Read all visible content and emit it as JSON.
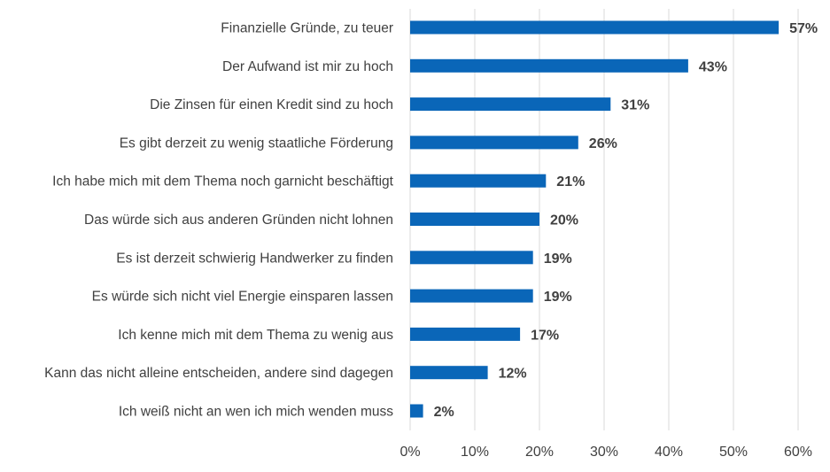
{
  "chart_data": {
    "type": "bar",
    "orientation": "horizontal",
    "categories": [
      "Finanzielle Gründe, zu teuer",
      "Der Aufwand ist mir zu hoch",
      "Die Zinsen für einen Kredit sind zu hoch",
      "Es gibt derzeit zu wenig staatliche Förderung",
      "Ich habe mich mit dem  Thema noch garnicht beschäftigt",
      "Das würde sich aus anderen Gründen nicht lohnen",
      "Es ist derzeit schwierig Handwerker zu finden",
      "Es würde sich nicht viel Energie einsparen lassen",
      "Ich kenne mich mit dem Thema zu wenig aus",
      "Kann das nicht alleine entscheiden, andere sind dagegen",
      "Ich weiß nicht an wen ich mich wenden muss"
    ],
    "values": [
      57,
      43,
      31,
      26,
      21,
      20,
      19,
      19,
      17,
      12,
      2
    ],
    "value_labels": [
      "57%",
      "43%",
      "31%",
      "26%",
      "21%",
      "20%",
      "19%",
      "19%",
      "17%",
      "12%",
      "2%"
    ],
    "x_ticks": [
      0,
      10,
      20,
      30,
      40,
      50,
      60
    ],
    "x_tick_labels": [
      "0%",
      "10%",
      "20%",
      "30%",
      "40%",
      "50%",
      "60%"
    ],
    "xlim": [
      0,
      60
    ],
    "grid": true,
    "legend": "none",
    "bar_color": "#0a66b8",
    "title": "",
    "xlabel": "",
    "ylabel": ""
  }
}
